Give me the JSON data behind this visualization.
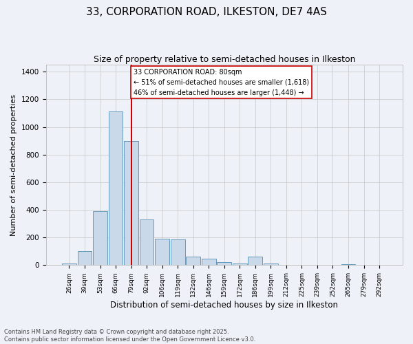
{
  "title": "33, CORPORATION ROAD, ILKESTON, DE7 4AS",
  "subtitle": "Size of property relative to semi-detached houses in Ilkeston",
  "xlabel": "Distribution of semi-detached houses by size in Ilkeston",
  "ylabel": "Number of semi-detached properties",
  "categories": [
    "26sqm",
    "39sqm",
    "53sqm",
    "66sqm",
    "79sqm",
    "92sqm",
    "106sqm",
    "119sqm",
    "132sqm",
    "146sqm",
    "159sqm",
    "172sqm",
    "186sqm",
    "199sqm",
    "212sqm",
    "225sqm",
    "239sqm",
    "252sqm",
    "265sqm",
    "279sqm",
    "292sqm"
  ],
  "values": [
    10,
    100,
    390,
    1110,
    900,
    330,
    190,
    185,
    60,
    45,
    20,
    10,
    60,
    10,
    0,
    0,
    0,
    0,
    5,
    0,
    0
  ],
  "bar_color": "#c9d9ea",
  "bar_edge_color": "#6699bb",
  "vline_x_index": 4,
  "vline_color": "#cc0000",
  "annotation_text": "33 CORPORATION ROAD: 80sqm\n← 51% of semi-detached houses are smaller (1,618)\n46% of semi-detached houses are larger (1,448) →",
  "annotation_box_facecolor": "#ffffff",
  "annotation_box_edgecolor": "#cc0000",
  "footer_text": "Contains HM Land Registry data © Crown copyright and database right 2025.\nContains public sector information licensed under the Open Government Licence v3.0.",
  "ylim": [
    0,
    1450
  ],
  "bg_color": "#eef2f8",
  "title_fontsize": 11,
  "subtitle_fontsize": 9,
  "ylabel_fontsize": 8,
  "xlabel_fontsize": 8.5,
  "tick_fontsize": 6.5,
  "footer_fontsize": 6,
  "ann_fontsize": 7
}
